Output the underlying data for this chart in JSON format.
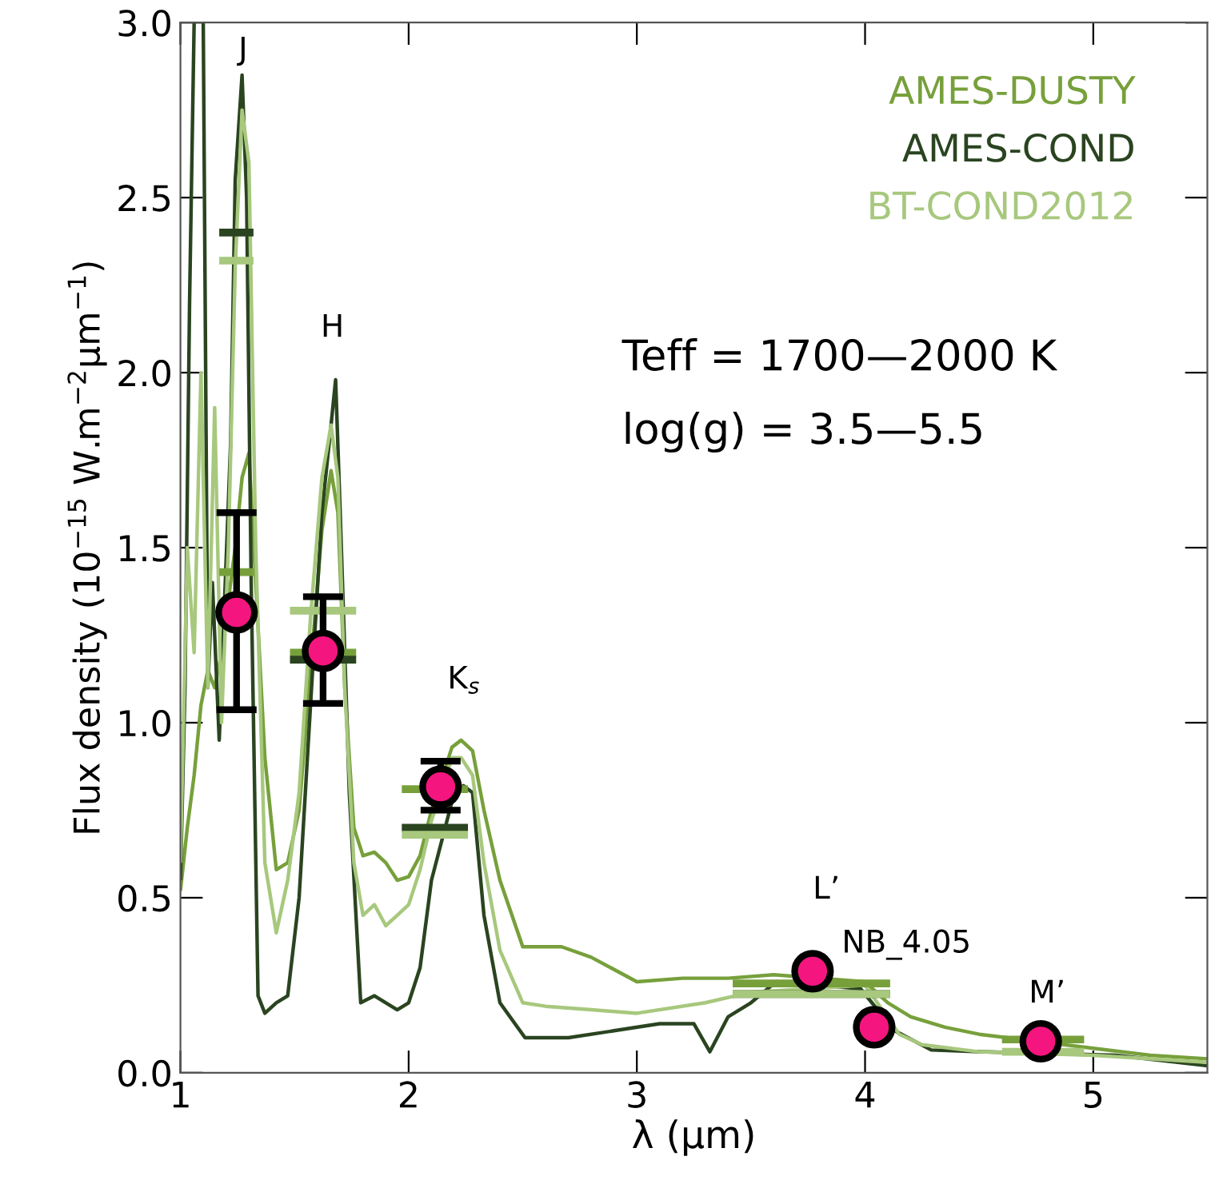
{
  "chart_data": {
    "type": "line",
    "xlabel": "λ (µm)",
    "ylabel": "Flux density (10$^{−15}$ W.m$^{−2}$µm$^{−1}$)",
    "xlim": [
      1.0,
      5.5
    ],
    "xticks": [
      1,
      2,
      3,
      4,
      5
    ],
    "ylim": [
      0.0,
      3.0
    ],
    "yticks": [
      {
        "value": 0.0,
        "label": "0.0"
      },
      0.5,
      {
        "value": 1.0,
        "label": "1.0"
      },
      1.5,
      {
        "value": 2.0,
        "label": "2.0"
      },
      2.5,
      {
        "value": 3.0,
        "label": "3.0"
      }
    ],
    "grid": false,
    "legend": "top right",
    "line_style": "solid",
    "series": [
      {
        "name": "AMES-DUSTY",
        "color": "#77a03b",
        "x": [
          1.0,
          1.03,
          1.06,
          1.09,
          1.12,
          1.15,
          1.18,
          1.24,
          1.27,
          1.3,
          1.33,
          1.37,
          1.42,
          1.47,
          1.52,
          1.62,
          1.66,
          1.69,
          1.72,
          1.76,
          1.8,
          1.85,
          1.9,
          1.95,
          2.0,
          2.05,
          2.1,
          2.19,
          2.23,
          2.28,
          2.33,
          2.4,
          2.5,
          2.67,
          2.8,
          3.0,
          3.2,
          3.4,
          3.6,
          4.0,
          4.1,
          4.2,
          4.35,
          4.5,
          5.0,
          5.25,
          5.5
        ],
        "values": [
          0.52,
          0.7,
          0.85,
          1.05,
          1.15,
          1.1,
          1.2,
          1.5,
          1.7,
          1.77,
          1.4,
          0.9,
          0.58,
          0.6,
          0.75,
          1.55,
          1.72,
          1.6,
          1.1,
          0.7,
          0.62,
          0.63,
          0.6,
          0.55,
          0.56,
          0.62,
          0.75,
          0.93,
          0.95,
          0.92,
          0.75,
          0.55,
          0.36,
          0.36,
          0.33,
          0.26,
          0.27,
          0.27,
          0.28,
          0.26,
          0.2,
          0.16,
          0.13,
          0.11,
          0.07,
          0.05,
          0.04
        ]
      },
      {
        "name": "AMES-COND",
        "color": "#2a4420",
        "x": [
          1.0,
          1.02,
          1.04,
          1.06,
          1.07,
          1.1,
          1.12,
          1.14,
          1.17,
          1.22,
          1.24,
          1.27,
          1.29,
          1.31,
          1.34,
          1.37,
          1.42,
          1.47,
          1.52,
          1.62,
          1.66,
          1.68,
          1.7,
          1.74,
          1.79,
          1.85,
          1.9,
          1.95,
          2.0,
          2.05,
          2.1,
          2.2,
          2.24,
          2.28,
          2.33,
          2.4,
          2.51,
          2.7,
          2.9,
          3.1,
          3.25,
          3.32,
          3.4,
          3.5,
          3.61,
          3.98,
          4.13,
          4.29,
          4.5,
          5.1,
          5.5
        ],
        "values": [
          0.55,
          1.1,
          2.2,
          3.0,
          null,
          3.0,
          1.1,
          1.4,
          0.95,
          1.8,
          2.55,
          2.85,
          2.5,
          1.4,
          0.22,
          0.17,
          0.2,
          0.22,
          0.5,
          1.6,
          1.85,
          1.98,
          1.6,
          0.8,
          0.2,
          0.22,
          0.2,
          0.18,
          0.2,
          0.3,
          0.55,
          0.8,
          0.82,
          0.8,
          0.45,
          0.2,
          0.1,
          0.1,
          0.12,
          0.14,
          0.14,
          0.06,
          0.16,
          0.2,
          0.26,
          0.24,
          0.12,
          0.065,
          0.06,
          0.05,
          0.02
        ]
      },
      {
        "name": "BT-COND2012",
        "color": "#a7c87d",
        "x": [
          1.0,
          1.03,
          1.06,
          1.09,
          1.12,
          1.15,
          1.18,
          1.21,
          1.24,
          1.27,
          1.3,
          1.33,
          1.37,
          1.42,
          1.47,
          1.52,
          1.57,
          1.62,
          1.66,
          1.69,
          1.72,
          1.76,
          1.8,
          1.85,
          1.9,
          1.95,
          2.0,
          2.05,
          2.1,
          2.19,
          2.23,
          2.28,
          2.33,
          2.4,
          2.5,
          2.6,
          2.8,
          3.0,
          3.3,
          3.5,
          4.0,
          4.15,
          4.25,
          4.5,
          5.0,
          5.5
        ],
        "values": [
          0.6,
          1.5,
          1.2,
          2.0,
          1.1,
          1.9,
          1.0,
          1.5,
          2.3,
          2.75,
          2.6,
          1.5,
          0.6,
          0.4,
          0.55,
          0.8,
          1.3,
          1.7,
          1.85,
          1.7,
          1.1,
          0.6,
          0.45,
          0.48,
          0.42,
          0.45,
          0.48,
          0.58,
          0.72,
          0.9,
          0.9,
          0.85,
          0.6,
          0.35,
          0.2,
          0.19,
          0.18,
          0.17,
          0.2,
          0.23,
          0.25,
          0.11,
          0.08,
          0.06,
          0.05,
          0.03
        ]
      },
      {
        "color": "#77a03b",
        "line_style": "solid",
        "x": [
          1.17,
          1.32,
          1.4,
          1.48,
          1.77,
          1.87,
          1.97,
          2.26,
          3.0,
          3.42,
          4.11,
          4.3,
          4.6,
          4.96
        ],
        "values": [
          1.43,
          1.43,
          null,
          1.2,
          1.2,
          null,
          0.81,
          0.81,
          null,
          0.255,
          0.255,
          null,
          0.095,
          0.095
        ]
      },
      {
        "color": "#2a4420",
        "line_style": "solid",
        "x": [
          1.17,
          1.32,
          1.4,
          1.48,
          1.77,
          1.87,
          1.97,
          2.26,
          3.0,
          3.42,
          4.11
        ],
        "values": [
          2.4,
          2.4,
          null,
          1.18,
          1.18,
          null,
          0.7,
          0.7,
          null,
          0.225,
          0.225
        ]
      },
      {
        "color": "#a7c87d",
        "line_style": "solid",
        "x": [
          1.17,
          1.32,
          1.4,
          1.48,
          1.77,
          1.87,
          1.97,
          2.26,
          3.0,
          3.42,
          4.11,
          4.3,
          4.6,
          4.96
        ],
        "values": [
          2.32,
          2.32,
          null,
          1.32,
          1.32,
          null,
          0.68,
          0.68,
          null,
          0.225,
          0.225,
          null,
          0.06,
          0.06
        ]
      },
      {
        "color": "#f5157f",
        "type": "scatter",
        "marker": "circle",
        "x": [
          1.246,
          1.625,
          2.14,
          3.77,
          4.04,
          4.77
        ],
        "values": [
          1.315,
          1.205,
          0.817,
          0.29,
          0.13,
          0.09
        ],
        "errors": [
          [
            1.037,
            1.6
          ],
          [
            1.055,
            1.36
          ],
          [
            0.75,
            0.89
          ],
          null,
          null,
          null
        ]
      }
    ],
    "annotations": [
      "J",
      "H",
      "K$_{s}$",
      "L’",
      "NB_4.05",
      "M’",
      "Teff = 1700—2000 K",
      "log(g) = 3.5—5.5"
    ]
  }
}
